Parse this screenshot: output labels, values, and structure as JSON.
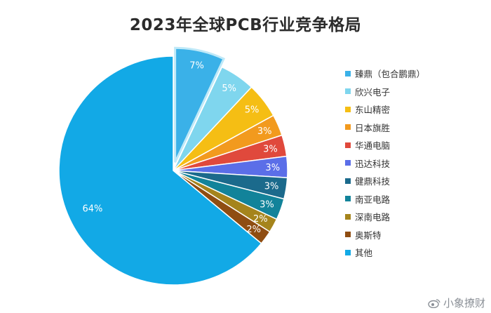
{
  "chart_data": {
    "type": "pie",
    "title": "2023年全球PCB行业竞争格局",
    "legend_position": "right",
    "slices": [
      {
        "label": "臻鼎（包合鹏鼎）",
        "value": 7,
        "value_label": "7%",
        "color": "#3ab1e8",
        "exploded": true
      },
      {
        "label": "欣兴电子",
        "value": 5,
        "value_label": "5%",
        "color": "#7fd6ee"
      },
      {
        "label": "东山精密",
        "value": 5,
        "value_label": "5%",
        "color": "#f5be14"
      },
      {
        "label": "日本旗胜",
        "value": 3,
        "value_label": "3%",
        "color": "#f29a1e"
      },
      {
        "label": "华通电脑",
        "value": 3,
        "value_label": "3%",
        "color": "#e0493c"
      },
      {
        "label": "迅达科技",
        "value": 3,
        "value_label": "3%",
        "color": "#5b6ee8"
      },
      {
        "label": "健鼎科技",
        "value": 3,
        "value_label": "3%",
        "color": "#1b6a8c"
      },
      {
        "label": "南亚电路",
        "value": 3,
        "value_label": "3%",
        "color": "#12839a"
      },
      {
        "label": "深南电路",
        "value": 2,
        "value_label": "2%",
        "color": "#a5841c"
      },
      {
        "label": "奥斯特",
        "value": 2,
        "value_label": "2%",
        "color": "#8f4d12"
      },
      {
        "label": "其他",
        "value": 64,
        "value_label": "64%",
        "color": "#12a9e6"
      }
    ]
  },
  "watermark": {
    "text": "小象撩财",
    "icon": "weibo-icon"
  }
}
